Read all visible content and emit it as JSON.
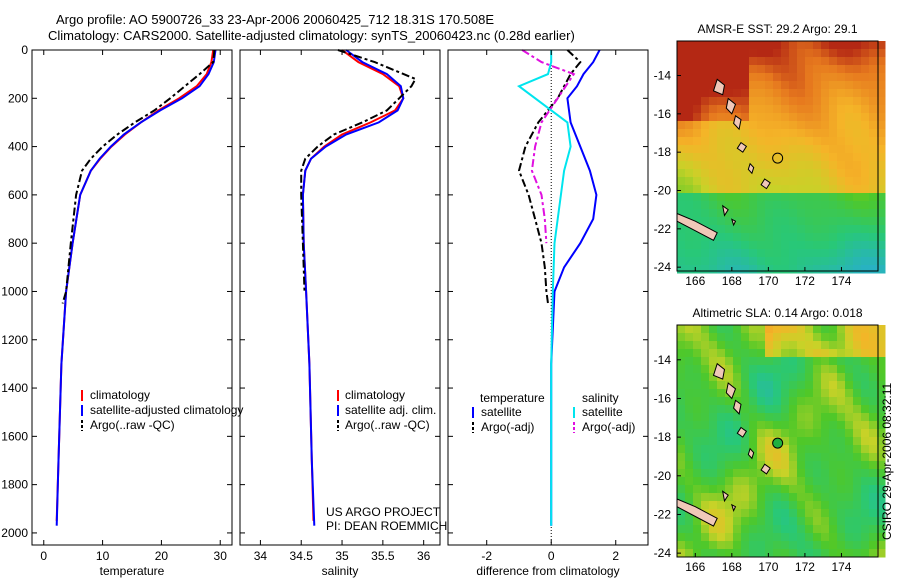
{
  "header": {
    "title_line1": "Argo profile: AO 5900726_33 23-Apr-2006 20060425_712 18.31S 170.508E",
    "title_line2": "Climatology: CARS2000. Satellite-adjusted climatology: synTS_20060423.nc (0.28d earlier)"
  },
  "side_label": "CSIRO 29-Apr-2006 08:32:11",
  "colors": {
    "climatology": "#ff0000",
    "satellite": "#0000ff",
    "argo": "#000000",
    "sal_satellite": "#00e5ee",
    "sal_argo": "#e010e0"
  },
  "chart_data": [
    {
      "type": "line",
      "id": "temperature",
      "xlabel": "temperature",
      "xlim": [
        -2,
        32
      ],
      "ylim": [
        2050,
        0
      ],
      "xticks": [
        "0",
        "10",
        "20",
        "30"
      ],
      "yticks": [
        "0",
        "200",
        "400",
        "600",
        "800",
        "1000",
        "1200",
        "1400",
        "1600",
        "1800",
        "2000"
      ],
      "series": [
        {
          "name": "climatology",
          "color": "#ff0000",
          "style": "solid",
          "x": [
            28.8,
            28.5,
            27.7,
            26.0,
            23.0,
            19.5,
            16.5,
            13.8,
            11.5,
            9.6,
            8.0,
            6.2,
            4.9,
            3.8,
            3.0,
            2.5,
            2.2
          ],
          "y": [
            0,
            50,
            100,
            150,
            200,
            250,
            300,
            350,
            400,
            450,
            500,
            600,
            800,
            1000,
            1300,
            1700,
            1950
          ]
        },
        {
          "name": "satellite-adjusted climatology",
          "color": "#0000ff",
          "style": "solid",
          "x": [
            29.2,
            28.9,
            28.0,
            26.5,
            23.5,
            19.8,
            16.5,
            13.6,
            11.4,
            9.5,
            8.0,
            6.2,
            4.9,
            3.8,
            3.0,
            2.5,
            2.2
          ],
          "y": [
            0,
            50,
            100,
            150,
            200,
            250,
            300,
            350,
            400,
            450,
            500,
            600,
            800,
            1000,
            1300,
            1700,
            1970
          ]
        },
        {
          "name": "Argo(..raw -QC)",
          "color": "#000000",
          "style": "dash",
          "x": [
            29.0,
            28.8,
            26.5,
            24.0,
            21.5,
            18.8,
            15.5,
            12.5,
            10.0,
            8.0,
            6.5,
            5.5,
            4.6,
            3.8,
            3.2
          ],
          "y": [
            0,
            50,
            100,
            150,
            200,
            250,
            300,
            350,
            400,
            450,
            500,
            600,
            800,
            1000,
            1050
          ]
        }
      ],
      "legend": [
        "climatology",
        "satellite-adjusted climatology",
        "Argo(..raw -QC)"
      ]
    },
    {
      "type": "line",
      "id": "salinity",
      "xlabel": "salinity",
      "xlim": [
        33.75,
        36.2
      ],
      "ylim": [
        2050,
        0
      ],
      "xticks": [
        "34",
        "34.5",
        "35",
        "35.5",
        "36"
      ],
      "series": [
        {
          "name": "climatology",
          "color": "#ff0000",
          "style": "solid",
          "x": [
            35.0,
            35.2,
            35.5,
            35.7,
            35.75,
            35.65,
            35.35,
            35.0,
            34.78,
            34.62,
            34.55,
            34.52,
            34.53,
            34.56,
            34.6,
            34.63,
            34.65
          ],
          "y": [
            0,
            50,
            100,
            150,
            200,
            250,
            300,
            350,
            400,
            450,
            500,
            600,
            800,
            1000,
            1300,
            1700,
            1950
          ]
        },
        {
          "name": "satellite adj. clim.",
          "color": "#0000ff",
          "style": "solid",
          "x": [
            35.05,
            35.25,
            35.55,
            35.72,
            35.75,
            35.68,
            35.45,
            35.05,
            34.8,
            34.62,
            34.55,
            34.52,
            34.53,
            34.56,
            34.6,
            34.63,
            34.66
          ],
          "y": [
            0,
            50,
            100,
            150,
            200,
            250,
            300,
            350,
            400,
            450,
            500,
            600,
            800,
            1000,
            1300,
            1700,
            1970
          ]
        },
        {
          "name": "Argo(..raw -QC)",
          "color": "#000000",
          "style": "dash",
          "x": [
            34.95,
            35.4,
            35.9,
            35.85,
            35.7,
            35.55,
            35.25,
            34.9,
            34.7,
            34.55,
            34.5,
            34.5,
            34.52,
            34.54
          ],
          "y": [
            0,
            50,
            120,
            150,
            200,
            250,
            300,
            350,
            400,
            450,
            500,
            600,
            800,
            1000
          ]
        }
      ],
      "legend": [
        "climatology",
        "satellite adj. clim.",
        "Argo(..raw -QC)"
      ],
      "annotation_line1": "US ARGO PROJECT",
      "annotation_line2": "PI: DEAN ROEMMICH"
    },
    {
      "type": "line",
      "id": "difference",
      "xlabel": "difference from climatology",
      "xlim": [
        -3.2,
        3.0
      ],
      "ylim": [
        2050,
        0
      ],
      "xticks": [
        "-2",
        "0",
        "2"
      ],
      "series": [
        {
          "name": "temperature satellite",
          "color": "#0000ff",
          "style": "solid",
          "x": [
            1.5,
            1.3,
            1.0,
            0.8,
            0.5,
            0.6,
            0.9,
            1.2,
            1.4,
            1.3,
            0.9,
            0.4,
            0.1,
            0.0,
            0.0,
            0.0
          ],
          "y": [
            0,
            50,
            100,
            150,
            200,
            300,
            400,
            500,
            600,
            700,
            800,
            900,
            1000,
            1300,
            1700,
            1970
          ]
        },
        {
          "name": "temperature Argo(-adj)",
          "color": "#000000",
          "style": "dash",
          "x": [
            0.5,
            0.9,
            0.6,
            0.2,
            -0.4,
            -0.8,
            -1.0,
            -0.7,
            -0.5,
            -0.3,
            -0.2,
            -0.15,
            -0.1
          ],
          "y": [
            0,
            50,
            100,
            200,
            300,
            400,
            500,
            600,
            700,
            800,
            900,
            1000,
            1050
          ]
        },
        {
          "name": "salinity satellite",
          "color": "#00e5ee",
          "style": "solid",
          "x": [
            0.0,
            0.0,
            -0.1,
            -1.0,
            0.5,
            0.6,
            0.4,
            0.3,
            0.2,
            0.1,
            0.05,
            0.0,
            0.0,
            0.0
          ],
          "y": [
            0,
            50,
            100,
            150,
            300,
            400,
            500,
            600,
            700,
            800,
            1000,
            1300,
            1700,
            1970
          ]
        },
        {
          "name": "salinity Argo(-adj)",
          "color": "#e010e0",
          "style": "dash",
          "x": [
            -0.9,
            -0.3,
            0.7,
            0.2,
            -0.3,
            -0.5,
            -0.6,
            -0.3,
            -0.2,
            -0.15
          ],
          "y": [
            0,
            50,
            100,
            200,
            300,
            400,
            500,
            600,
            700,
            800
          ]
        }
      ],
      "legend_header_temperature": "temperature",
      "legend_header_salinity": "salinity",
      "legend": [
        "satellite",
        "Argo(-adj)",
        "satellite",
        "Argo(-adj)"
      ]
    },
    {
      "type": "heatmap",
      "id": "sst_map",
      "title": "AMSR-E SST: 29.2  Argo: 29.1",
      "xlim": [
        165,
        176
      ],
      "ylim": [
        -24.2,
        -12.2
      ],
      "xticks": [
        "166",
        "168",
        "170",
        "172",
        "174"
      ],
      "yticks": [
        "-14",
        "-16",
        "-18",
        "-20",
        "-22",
        "-24"
      ],
      "float_location": [
        170.508,
        -18.31
      ]
    },
    {
      "type": "heatmap",
      "id": "sla_map",
      "title": "Altimetric SLA: 0.14  Argo: 0.018",
      "xlim": [
        165,
        176
      ],
      "ylim": [
        -24.2,
        -12.2
      ],
      "xticks": [
        "166",
        "168",
        "170",
        "172",
        "174"
      ],
      "yticks": [
        "-14",
        "-16",
        "-18",
        "-20",
        "-22",
        "-24"
      ],
      "float_location": [
        170.508,
        -18.31
      ]
    }
  ]
}
